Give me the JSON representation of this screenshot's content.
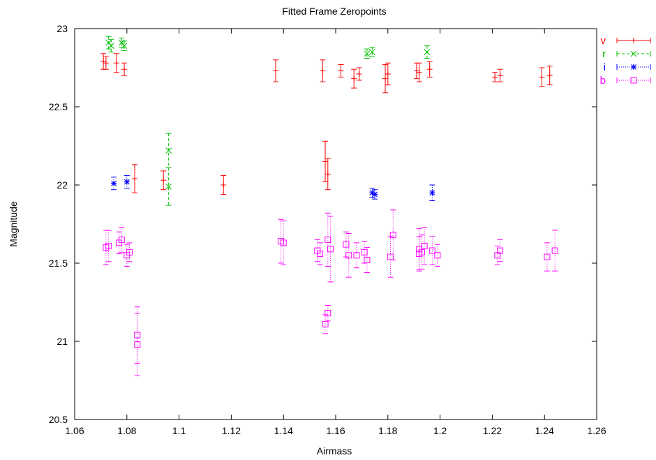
{
  "chart_data": {
    "type": "scatter",
    "title": "Fitted Frame Zeropoints",
    "xlabel": "Airmass",
    "ylabel": "Magnitude",
    "xlim": [
      1.06,
      1.26
    ],
    "ylim": [
      20.5,
      23
    ],
    "xticks": [
      "1.06",
      "1.08",
      "1.1",
      "1.12",
      "1.14",
      "1.16",
      "1.18",
      "1.2",
      "1.22",
      "1.24",
      "1.26"
    ],
    "yticks": [
      "20.5",
      "21",
      "21.5",
      "22",
      "22.5",
      "23"
    ],
    "grid": false,
    "legend_position": "right",
    "series": [
      {
        "name": "v",
        "color": "#ff0000",
        "marker": "plus",
        "line_style": "solid",
        "points": [
          {
            "x": 1.071,
            "y": 22.79,
            "err": 0.05
          },
          {
            "x": 1.072,
            "y": 22.78,
            "err": 0.04
          },
          {
            "x": 1.076,
            "y": 22.78,
            "err": 0.06
          },
          {
            "x": 1.079,
            "y": 22.74,
            "err": 0.04
          },
          {
            "x": 1.083,
            "y": 22.04,
            "err": 0.09
          },
          {
            "x": 1.094,
            "y": 22.03,
            "err": 0.06
          },
          {
            "x": 1.117,
            "y": 22.0,
            "err": 0.06
          },
          {
            "x": 1.137,
            "y": 22.73,
            "err": 0.07
          },
          {
            "x": 1.155,
            "y": 22.73,
            "err": 0.07
          },
          {
            "x": 1.156,
            "y": 22.15,
            "err": 0.13
          },
          {
            "x": 1.157,
            "y": 22.07,
            "err": 0.1
          },
          {
            "x": 1.162,
            "y": 22.73,
            "err": 0.04
          },
          {
            "x": 1.167,
            "y": 22.68,
            "err": 0.06
          },
          {
            "x": 1.169,
            "y": 22.71,
            "err": 0.04
          },
          {
            "x": 1.179,
            "y": 22.68,
            "err": 0.09
          },
          {
            "x": 1.18,
            "y": 22.71,
            "err": 0.07
          },
          {
            "x": 1.191,
            "y": 22.73,
            "err": 0.05
          },
          {
            "x": 1.192,
            "y": 22.72,
            "err": 0.06
          },
          {
            "x": 1.196,
            "y": 22.74,
            "err": 0.05
          },
          {
            "x": 1.221,
            "y": 22.69,
            "err": 0.03
          },
          {
            "x": 1.223,
            "y": 22.7,
            "err": 0.04
          },
          {
            "x": 1.239,
            "y": 22.69,
            "err": 0.06
          },
          {
            "x": 1.242,
            "y": 22.7,
            "err": 0.06
          }
        ]
      },
      {
        "name": "r",
        "color": "#00c000",
        "marker": "cross",
        "line_style": "dashed",
        "points": [
          {
            "x": 1.073,
            "y": 22.91,
            "err": 0.04
          },
          {
            "x": 1.074,
            "y": 22.89,
            "err": 0.04
          },
          {
            "x": 1.078,
            "y": 22.91,
            "err": 0.03
          },
          {
            "x": 1.079,
            "y": 22.89,
            "err": 0.03
          },
          {
            "x": 1.096,
            "y": 22.22,
            "err": 0.11
          },
          {
            "x": 1.096,
            "y": 21.99,
            "err": 0.12
          },
          {
            "x": 1.172,
            "y": 22.84,
            "err": 0.03
          },
          {
            "x": 1.174,
            "y": 22.85,
            "err": 0.03
          },
          {
            "x": 1.195,
            "y": 22.85,
            "err": 0.04
          }
        ]
      },
      {
        "name": "i",
        "color": "#0000ff",
        "marker": "star",
        "line_style": "dotted",
        "points": [
          {
            "x": 1.075,
            "y": 22.01,
            "err": 0.04
          },
          {
            "x": 1.08,
            "y": 22.02,
            "err": 0.04
          },
          {
            "x": 1.174,
            "y": 21.95,
            "err": 0.03
          },
          {
            "x": 1.175,
            "y": 21.94,
            "err": 0.03
          },
          {
            "x": 1.197,
            "y": 21.95,
            "err": 0.05
          }
        ]
      },
      {
        "name": "b",
        "color": "#ff00ff",
        "marker": "square",
        "line_style": "dotted",
        "points": [
          {
            "x": 1.072,
            "y": 21.6,
            "err": 0.11
          },
          {
            "x": 1.073,
            "y": 21.61,
            "err": 0.1
          },
          {
            "x": 1.077,
            "y": 21.63,
            "err": 0.07
          },
          {
            "x": 1.078,
            "y": 21.65,
            "err": 0.08
          },
          {
            "x": 1.08,
            "y": 21.55,
            "err": 0.07
          },
          {
            "x": 1.081,
            "y": 21.57,
            "err": 0.06
          },
          {
            "x": 1.084,
            "y": 21.04,
            "err": 0.18
          },
          {
            "x": 1.084,
            "y": 20.98,
            "err": 0.2
          },
          {
            "x": 1.139,
            "y": 21.64,
            "err": 0.14
          },
          {
            "x": 1.14,
            "y": 21.63,
            "err": 0.14
          },
          {
            "x": 1.153,
            "y": 21.58,
            "err": 0.07
          },
          {
            "x": 1.154,
            "y": 21.56,
            "err": 0.07
          },
          {
            "x": 1.156,
            "y": 21.11,
            "err": 0.06
          },
          {
            "x": 1.157,
            "y": 21.18,
            "err": 0.05
          },
          {
            "x": 1.157,
            "y": 21.65,
            "err": 0.17
          },
          {
            "x": 1.158,
            "y": 21.59,
            "err": 0.21
          },
          {
            "x": 1.164,
            "y": 21.62,
            "err": 0.08
          },
          {
            "x": 1.165,
            "y": 21.55,
            "err": 0.14
          },
          {
            "x": 1.168,
            "y": 21.55,
            "err": 0.08
          },
          {
            "x": 1.171,
            "y": 21.57,
            "err": 0.07
          },
          {
            "x": 1.172,
            "y": 21.52,
            "err": 0.08
          },
          {
            "x": 1.181,
            "y": 21.54,
            "err": 0.13
          },
          {
            "x": 1.182,
            "y": 21.68,
            "err": 0.16
          },
          {
            "x": 1.192,
            "y": 21.59,
            "err": 0.13
          },
          {
            "x": 1.192,
            "y": 21.56,
            "err": 0.11
          },
          {
            "x": 1.193,
            "y": 21.57,
            "err": 0.11
          },
          {
            "x": 1.194,
            "y": 21.61,
            "err": 0.12
          },
          {
            "x": 1.197,
            "y": 21.58,
            "err": 0.09
          },
          {
            "x": 1.199,
            "y": 21.55,
            "err": 0.07
          },
          {
            "x": 1.222,
            "y": 21.55,
            "err": 0.06
          },
          {
            "x": 1.223,
            "y": 21.58,
            "err": 0.07
          },
          {
            "x": 1.241,
            "y": 21.54,
            "err": 0.09
          },
          {
            "x": 1.244,
            "y": 21.58,
            "err": 0.13
          }
        ]
      }
    ]
  }
}
